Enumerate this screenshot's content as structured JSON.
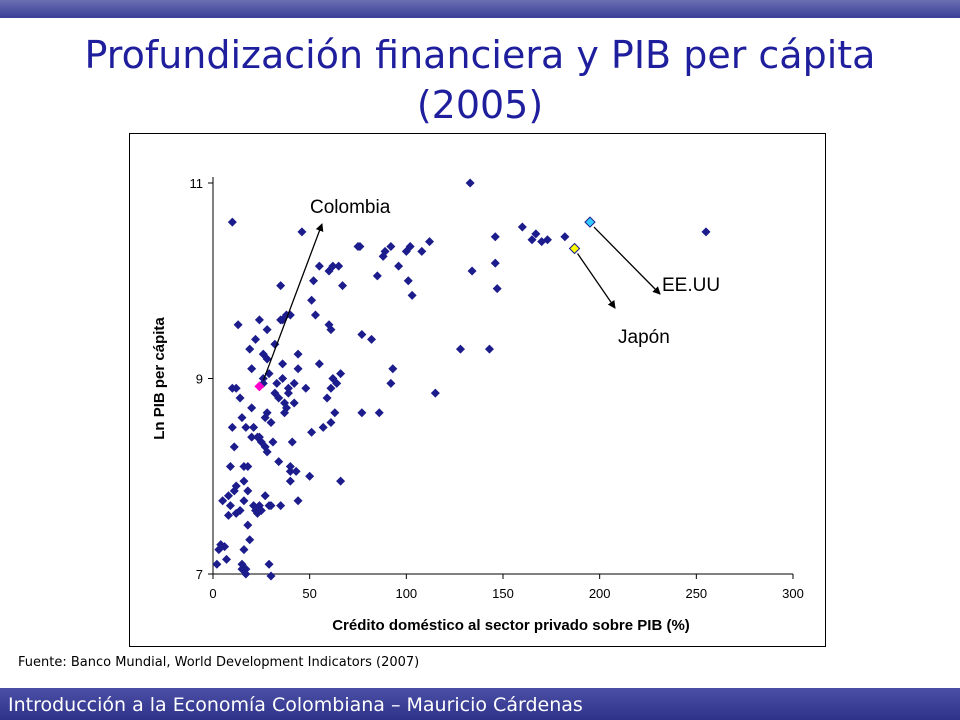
{
  "slide": {
    "title_line1": "Profundización financiera y PIB per cápita",
    "title_line2": "(2005)",
    "source": "Fuente: Banco Mundial, World Development Indicators (2007)",
    "footer": "Introducción a la Economía Colombiana – Mauricio Cárdenas"
  },
  "chart_data": {
    "type": "scatter",
    "title": "",
    "xlabel": "Crédito doméstico al sector privado sobre PIB (%)",
    "ylabel": "Ln PIB per cápita",
    "xlim": [
      0,
      300
    ],
    "ylim": [
      7,
      11
    ],
    "x_ticks": [
      0,
      50,
      100,
      150,
      200,
      250,
      300
    ],
    "y_ticks": [
      7,
      9,
      11
    ],
    "grid": false,
    "legend": "none",
    "colors": {
      "points": "#1c1c8c",
      "colombia": "#ff00cc",
      "japon": "#ffff00",
      "eeuu": "#33ccff"
    },
    "series": [
      {
        "points": [
          [
            2,
            7.1
          ],
          [
            3,
            7.25
          ],
          [
            4,
            7.3
          ],
          [
            5,
            7.75
          ],
          [
            6,
            7.28
          ],
          [
            7,
            7.15
          ],
          [
            8,
            7.8
          ],
          [
            8,
            7.6
          ],
          [
            9,
            7.7
          ],
          [
            9,
            8.1
          ],
          [
            10,
            8.5
          ],
          [
            10,
            8.9
          ],
          [
            10,
            10.6
          ],
          [
            11,
            8.3
          ],
          [
            11,
            7.85
          ],
          [
            12,
            7.62
          ],
          [
            12,
            7.9
          ],
          [
            12,
            8.9
          ],
          [
            13,
            9.55
          ],
          [
            14,
            7.65
          ],
          [
            14,
            8.8
          ],
          [
            15,
            8.6
          ],
          [
            15,
            7.05
          ],
          [
            15,
            7.1
          ],
          [
            16,
            7.25
          ],
          [
            16,
            7.75
          ],
          [
            16,
            7.95
          ],
          [
            16,
            8.1
          ],
          [
            17,
            8.5
          ],
          [
            17,
            7.0
          ],
          [
            17,
            7.05
          ],
          [
            18,
            8.1
          ],
          [
            18,
            7.85
          ],
          [
            18,
            7.5
          ],
          [
            19,
            7.35
          ],
          [
            19,
            9.3
          ],
          [
            20,
            8.4
          ],
          [
            20,
            8.7
          ],
          [
            20,
            9.1
          ],
          [
            21,
            7.7
          ],
          [
            21,
            8.5
          ],
          [
            22,
            9.4
          ],
          [
            22,
            7.65
          ],
          [
            23,
            8.4
          ],
          [
            23,
            7.62
          ],
          [
            24,
            8.4
          ],
          [
            24,
            9.6
          ],
          [
            24,
            7.7
          ],
          [
            25,
            7.65
          ],
          [
            25,
            8.35
          ],
          [
            26,
            8.95
          ],
          [
            26,
            9.0
          ],
          [
            26,
            9.25
          ],
          [
            27,
            8.3
          ],
          [
            27,
            7.8
          ],
          [
            27,
            8.6
          ],
          [
            28,
            8.25
          ],
          [
            28,
            8.65
          ],
          [
            28,
            9.2
          ],
          [
            28,
            9.5
          ],
          [
            29,
            7.7
          ],
          [
            29,
            9.05
          ],
          [
            29,
            7.1
          ],
          [
            30,
            8.55
          ],
          [
            30,
            7.7
          ],
          [
            30,
            6.98
          ],
          [
            31,
            8.35
          ],
          [
            32,
            8.85
          ],
          [
            32,
            9.35
          ],
          [
            33,
            8.95
          ],
          [
            34,
            8.15
          ],
          [
            34,
            8.8
          ],
          [
            35,
            9.95
          ],
          [
            35,
            9.6
          ],
          [
            35,
            7.7
          ],
          [
            36,
            9.0
          ],
          [
            36,
            9.15
          ],
          [
            36,
            9.6
          ],
          [
            37,
            8.65
          ],
          [
            37,
            8.75
          ],
          [
            38,
            9.65
          ],
          [
            38,
            8.7
          ],
          [
            39,
            8.85
          ],
          [
            39,
            8.9
          ],
          [
            40,
            8.1
          ],
          [
            40,
            7.95
          ],
          [
            40,
            9.65
          ],
          [
            40,
            8.05
          ],
          [
            41,
            8.35
          ],
          [
            42,
            8.75
          ],
          [
            42,
            8.95
          ],
          [
            43,
            8.05
          ],
          [
            44,
            9.1
          ],
          [
            44,
            7.75
          ],
          [
            44,
            9.25
          ],
          [
            46,
            10.5
          ],
          [
            48,
            8.9
          ],
          [
            50,
            8.0
          ],
          [
            51,
            8.45
          ],
          [
            51,
            9.8
          ],
          [
            52,
            10.0
          ],
          [
            53,
            9.65
          ],
          [
            55,
            10.15
          ],
          [
            55,
            9.15
          ],
          [
            57,
            8.5
          ],
          [
            59,
            8.8
          ],
          [
            60,
            9.55
          ],
          [
            60,
            10.1
          ],
          [
            61,
            8.55
          ],
          [
            61,
            9.5
          ],
          [
            61,
            8.9
          ],
          [
            62,
            9.0
          ],
          [
            62,
            10.15
          ],
          [
            63,
            8.65
          ],
          [
            64,
            8.95
          ],
          [
            65,
            10.15
          ],
          [
            66,
            7.95
          ],
          [
            66,
            9.05
          ],
          [
            67,
            9.95
          ],
          [
            75,
            10.35
          ],
          [
            76,
            10.35
          ],
          [
            77,
            8.65
          ],
          [
            77,
            9.45
          ],
          [
            82,
            9.4
          ],
          [
            85,
            10.05
          ],
          [
            86,
            8.65
          ],
          [
            88,
            10.25
          ],
          [
            89,
            10.3
          ],
          [
            92,
            8.95
          ],
          [
            92,
            10.35
          ],
          [
            93,
            9.1
          ],
          [
            96,
            10.15
          ],
          [
            100,
            10.3
          ],
          [
            101,
            10.0
          ],
          [
            102,
            10.35
          ],
          [
            103,
            9.85
          ],
          [
            108,
            10.3
          ],
          [
            112,
            10.4
          ],
          [
            115,
            8.85
          ],
          [
            128,
            9.3
          ],
          [
            133,
            11.0
          ],
          [
            134,
            10.1
          ],
          [
            143,
            9.3
          ],
          [
            146,
            10.45
          ],
          [
            146,
            10.18
          ],
          [
            147,
            9.92
          ],
          [
            160,
            10.55
          ],
          [
            165,
            10.42
          ],
          [
            167,
            10.48
          ],
          [
            170,
            10.4
          ],
          [
            173,
            10.42
          ],
          [
            182,
            10.45
          ],
          [
            255,
            10.5
          ]
        ]
      }
    ],
    "highlights": [
      {
        "label": "Colombia",
        "x": 24,
        "y": 8.92
      },
      {
        "label": "Japón",
        "x": 187,
        "y": 10.33
      },
      {
        "label": "EE.UU",
        "x": 195,
        "y": 10.6
      }
    ]
  }
}
